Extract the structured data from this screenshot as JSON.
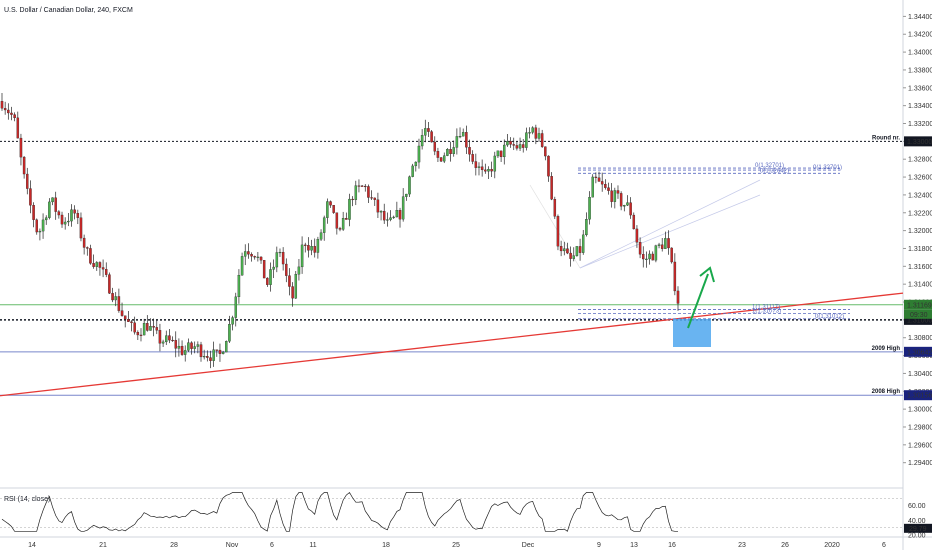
{
  "header": {
    "title": "U.S. Dollar / Canadian Dollar, 240, FXCM"
  },
  "rsi": {
    "label": "RSI (14, close)",
    "value_label": "29.79",
    "ticks": [
      "60.00",
      "40.00",
      "20.00"
    ]
  },
  "colors": {
    "up": "#26a69a",
    "down": "#ef5350",
    "up_body": "#4caf50",
    "down_body": "#c62828",
    "trendline": "#e53935",
    "arrow": "#19a84b",
    "zone": "#4fa7ef",
    "level_blue": "#1a237e",
    "fib": "#5c6bc0",
    "green_line": "#66bb6a"
  },
  "chart_data": {
    "type": "candlestick",
    "y_range": [
      1.2915,
      1.3455
    ],
    "y_ticks": [
      "1.34400",
      "1.34200",
      "1.34000",
      "1.33800",
      "1.33600",
      "1.33400",
      "1.33200",
      "1.33000",
      "1.32800",
      "1.32600",
      "1.32400",
      "1.32200",
      "1.32000",
      "1.31800",
      "1.31600",
      "1.31400",
      "1.31200",
      "1.31000",
      "1.30800",
      "1.30600",
      "1.30400",
      "1.30200",
      "1.30000",
      "1.29800",
      "1.29600",
      "1.29400"
    ],
    "x_ticks": [
      "14",
      "21",
      "28",
      "Nov",
      "6",
      "11",
      "18",
      "25",
      "Dec",
      "9",
      "13",
      "16",
      "23",
      "26",
      "2020",
      "6"
    ],
    "price_path": [
      1.3345,
      1.3325,
      1.3245,
      1.3195,
      1.3235,
      1.321,
      1.322,
      1.3175,
      1.316,
      1.3135,
      1.3105,
      1.3085,
      1.3095,
      1.3078,
      1.3075,
      1.3065,
      1.307,
      1.3062,
      1.3058,
      1.31,
      1.3182,
      1.3175,
      1.314,
      1.318,
      1.312,
      1.319,
      1.3175,
      1.323,
      1.3195,
      1.324,
      1.325,
      1.3225,
      1.3205,
      1.322,
      1.3272,
      1.3315,
      1.328,
      1.329,
      1.3315,
      1.328,
      1.3258,
      1.3283,
      1.3296,
      1.3293,
      1.3315,
      1.329,
      1.319,
      1.3165,
      1.318,
      1.3258,
      1.3245,
      1.3235,
      1.3225,
      1.3165,
      1.3175,
      1.319,
      1.3122
    ],
    "levels": [
      {
        "label": "Round nr.",
        "value": 1.33,
        "price_label": "1.33000"
      },
      {
        "label": "",
        "value": 1.31169,
        "price_label": "1.31169"
      },
      {
        "label": "",
        "value": 1.31,
        "price_label": "1.31000"
      },
      {
        "label": "2009 High",
        "value": 1.30642,
        "price_label": "1.30642"
      },
      {
        "label": "2008 High",
        "value": 1.30156,
        "price_label": "1.30156"
      }
    ],
    "countdown_label": "09:30",
    "fib_top": [
      {
        "label": "0(1.32701)",
        "value": 1.32701
      },
      {
        "label": "0(1.32701)",
        "value": 1.32701
      },
      {
        "label": "0(1.32642)",
        "value": 1.32642
      }
    ],
    "fib_bottom": [
      {
        "label": "1(1.31117)",
        "value": 1.31117
      },
      {
        "label": "1(1.31073)",
        "value": 1.31073
      },
      {
        "label": "0(1.31012)",
        "value": 1.31012
      }
    ],
    "trendline": {
      "start": 1.3015,
      "end": 1.313
    },
    "rsi_range": [
      20,
      80
    ]
  }
}
